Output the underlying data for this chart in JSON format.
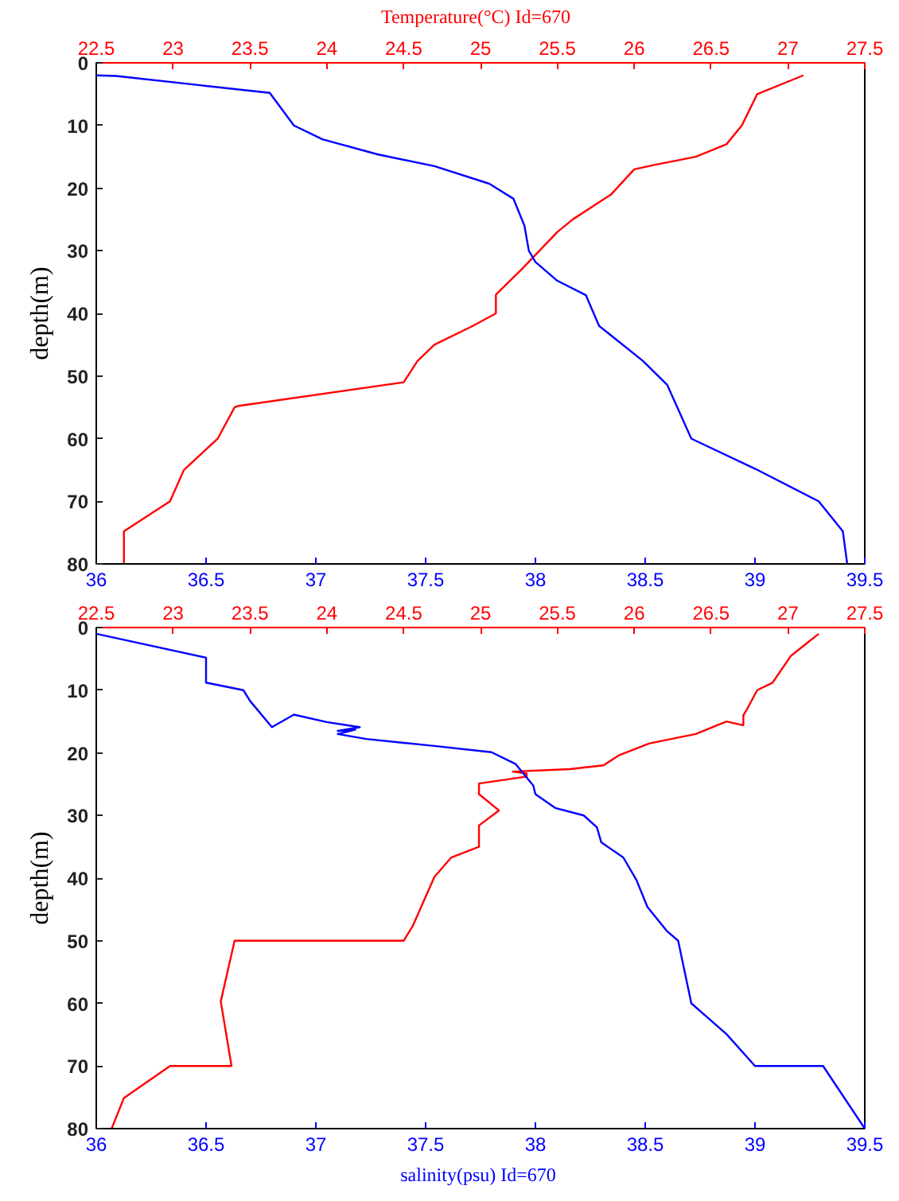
{
  "chart_data": [
    {
      "type": "line",
      "x2label": "Temperature(°C)   Id=670",
      "ylabel": "depth(m)",
      "xlim": [
        36,
        39.5
      ],
      "xticks": [
        36,
        36.5,
        37,
        37.5,
        38,
        38.5,
        39,
        39.5
      ],
      "x2lim": [
        22.5,
        27.5
      ],
      "x2ticks": [
        22.5,
        23,
        23.5,
        24,
        24.5,
        25,
        25.5,
        26,
        26.5,
        27,
        27.5
      ],
      "ylim": [
        80,
        0
      ],
      "yticks": [
        0,
        10,
        20,
        30,
        40,
        50,
        60,
        70,
        80
      ],
      "grid": false,
      "marker": "none",
      "line_style": "solid",
      "series": [
        {
          "color": "#ff0000",
          "axis": "x2",
          "x": [
            27.1,
            26.8,
            26.7,
            26.6,
            26.4,
            26.13,
            26.0,
            25.85,
            25.6,
            25.5,
            25.27,
            25.1,
            25.1,
            24.95,
            24.7,
            24.59,
            24.5,
            23.42,
            23.4,
            23.29,
            23.07,
            22.98,
            22.68,
            22.68
          ],
          "values": [
            2,
            5,
            10,
            13,
            15,
            16.3,
            17,
            21,
            25,
            27,
            32.9,
            37,
            40,
            42,
            45,
            47.6,
            51,
            54.8,
            55,
            60,
            65,
            70,
            74.8,
            80
          ]
        },
        {
          "color": "#0000ff",
          "x": [
            36.0,
            36.09,
            36.79,
            36.9,
            37.03,
            37.28,
            37.54,
            37.79,
            37.9,
            37.95,
            37.97,
            38.0,
            38.1,
            38.23,
            38.29,
            38.49,
            38.6,
            38.71,
            39.0,
            39.29,
            39.4,
            39.42
          ],
          "values": [
            2,
            2.1,
            4.8,
            10,
            12.2,
            14.6,
            16.5,
            19.3,
            21.7,
            26,
            30,
            31.8,
            34.8,
            37.1,
            42,
            47.6,
            51.4,
            60,
            64.8,
            70,
            74.8,
            80
          ]
        }
      ]
    },
    {
      "type": "line",
      "xlabel": "salinity(psu)  Id=670",
      "ylabel": "depth(m)",
      "xlim": [
        36,
        39.5
      ],
      "xticks": [
        36,
        36.5,
        37,
        37.5,
        38,
        38.5,
        39,
        39.5
      ],
      "x2lim": [
        22.5,
        27.5
      ],
      "x2ticks": [
        22.5,
        23,
        23.5,
        24,
        24.5,
        25,
        25.5,
        26,
        26.5,
        27,
        27.5
      ],
      "ylim": [
        80,
        0
      ],
      "yticks": [
        0,
        10,
        20,
        30,
        40,
        50,
        60,
        70,
        80
      ],
      "grid": false,
      "marker": "none",
      "line_style": "solid",
      "series": [
        {
          "color": "#ff0000",
          "axis": "x2",
          "x": [
            27.2,
            27.02,
            26.9,
            26.8,
            26.73,
            26.71,
            26.71,
            26.6,
            26.4,
            26.1,
            25.9,
            25.8,
            25.58,
            25.21,
            25.3,
            25.3,
            24.99,
            24.99,
            25.12,
            24.99,
            24.99,
            24.81,
            24.7,
            24.56,
            24.5,
            23.4,
            23.31,
            23.38,
            22.98,
            22.68,
            22.6
          ],
          "values": [
            1,
            4.5,
            8.8,
            10,
            13.2,
            14,
            15.6,
            15,
            17,
            18.5,
            20.4,
            22,
            22.6,
            23,
            23.3,
            23.8,
            24.9,
            26.6,
            29.2,
            31.6,
            35,
            36.7,
            39.8,
            47.6,
            50,
            50,
            59.7,
            70,
            70,
            75.1,
            80
          ]
        },
        {
          "color": "#0000ff",
          "x": [
            36.0,
            36.5,
            36.5,
            36.67,
            36.7,
            36.8,
            36.9,
            37.05,
            37.2,
            37.1,
            37.18,
            37.1,
            37.23,
            37.54,
            37.8,
            37.91,
            37.99,
            38.0,
            38.09,
            38.22,
            38.28,
            38.3,
            38.4,
            38.46,
            38.51,
            38.6,
            38.65,
            38.71,
            38.87,
            39.0,
            39.31,
            39.5
          ],
          "values": [
            1,
            4.8,
            8.8,
            10,
            11.7,
            15.9,
            13.9,
            15.1,
            15.9,
            16.5,
            16.3,
            17,
            17.8,
            18.9,
            19.9,
            21.8,
            25.2,
            26.6,
            28.8,
            30,
            31.9,
            34.3,
            36.7,
            40.3,
            44.6,
            48.5,
            50,
            60,
            64.9,
            70,
            70,
            80
          ]
        }
      ]
    }
  ]
}
